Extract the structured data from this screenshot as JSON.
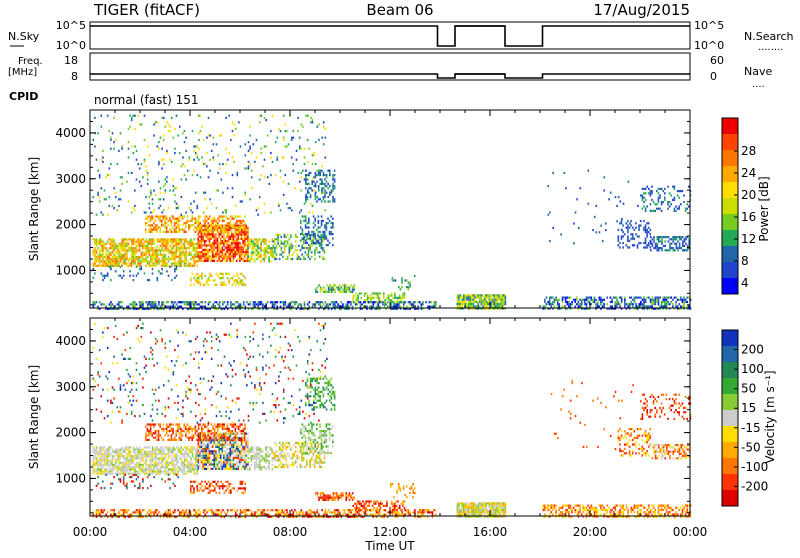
{
  "header": {
    "radar": "TIGER (fitACF)",
    "beam": "Beam 06",
    "date": "17/Aug/2015"
  },
  "top_panels": {
    "nsky_label": "N.Sky",
    "nsearch_label": "N.Search",
    "nsearch_legend_dots": "........",
    "nsky_ticks": [
      "10^5",
      "10^0"
    ],
    "nsearch_ticks": [
      "10^5",
      "10^0"
    ],
    "freq_label_1": "Freq.",
    "freq_label_2": "[MHz]",
    "freq_ticks": [
      "18",
      "8"
    ],
    "nave_label": "Nave",
    "nave_legend_dots": "....",
    "nave_ticks": [
      "60",
      "0"
    ],
    "cpid_label": "CPID",
    "cpid_value": "normal (fast) 151"
  },
  "colorbars": {
    "power": {
      "label": "Power [dB]",
      "tick_labels": [
        "28",
        "24",
        "20",
        "16",
        "12",
        "8",
        "4"
      ],
      "colors": [
        "#ee0000",
        "#ff4400",
        "#ff7700",
        "#ffaa00",
        "#ffdd00",
        "#ccdd00",
        "#77cc22",
        "#22aa55",
        "#2266aa",
        "#2244cc",
        "#0000ff"
      ]
    },
    "velocity": {
      "label": "Velocity [m s⁻¹]",
      "tick_labels": [
        "200",
        "100",
        "50",
        "15",
        "-15",
        "-50",
        "-100",
        "-200"
      ],
      "colors": [
        "#1133bb",
        "#2266aa",
        "#228855",
        "#33aa33",
        "#88cc33",
        "#cccccc",
        "#ffdd00",
        "#ffaa00",
        "#ff7700",
        "#ff3300",
        "#dd0000"
      ]
    }
  },
  "chart_data": [
    {
      "type": "heatmap",
      "title": "Power",
      "ylabel": "Slant Range [km]",
      "ylim": [
        180,
        4500
      ],
      "y_ticks": [
        "1000",
        "2000",
        "3000",
        "4000"
      ],
      "xlim_hours": [
        0,
        24
      ],
      "x_ticks": [
        "00:00",
        "04:00",
        "08:00",
        "12:00",
        "16:00",
        "20:00",
        "00:00"
      ],
      "colorbar_range": [
        0,
        32
      ]
    },
    {
      "type": "heatmap",
      "title": "Velocity",
      "ylabel": "Slant Range [km]",
      "ylim": [
        180,
        4500
      ],
      "y_ticks": [
        "1000",
        "2000",
        "3000",
        "4000"
      ],
      "xlim_hours": [
        0,
        24
      ],
      "x_ticks": [
        "00:00",
        "04:00",
        "08:00",
        "12:00",
        "16:00",
        "20:00",
        "00:00"
      ],
      "xlabel": "Time UT",
      "colorbar_range": [
        -250,
        250
      ]
    }
  ],
  "data_gaps_hours": [
    [
      13.9,
      14.6
    ],
    [
      16.6,
      18.1
    ]
  ]
}
